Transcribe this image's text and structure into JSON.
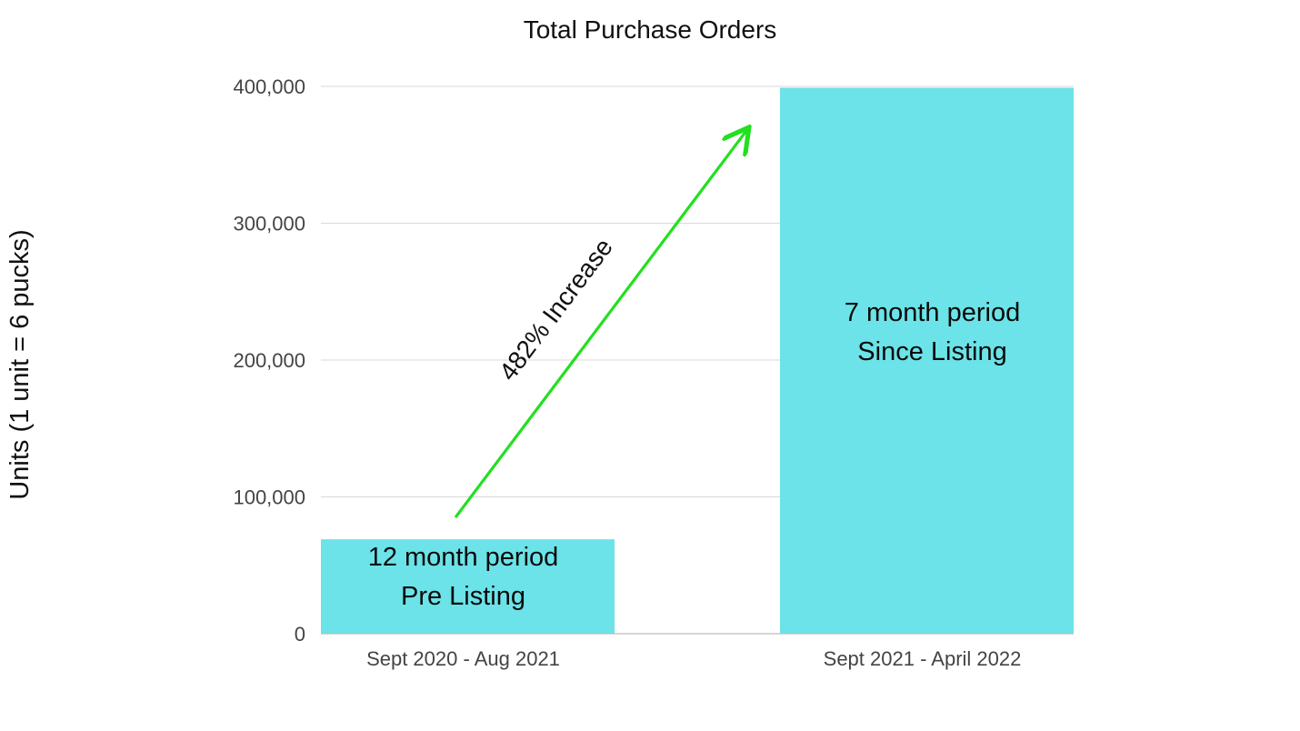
{
  "chart_data": {
    "type": "bar",
    "title": "Total Purchase Orders",
    "xlabel": "",
    "ylabel": "Units (1 unit = 6 pucks)",
    "ylim": [
      0,
      400000
    ],
    "yticks": [
      0,
      100000,
      200000,
      300000,
      400000
    ],
    "ytick_labels": [
      "0",
      "100,000",
      "200,000",
      "300,000",
      "400,000"
    ],
    "grid": true,
    "categories": [
      "Sept 2020 - Aug 2021",
      "Sept 2021 - April 2022"
    ],
    "values": [
      69000,
      399000
    ],
    "bar_labels": [
      [
        "12 month period",
        "Pre Listing"
      ],
      [
        "7 month period",
        "Since Listing"
      ]
    ],
    "annotation": {
      "text": "482% Increase",
      "from": {
        "category_index": 0,
        "value": 85000
      },
      "to": {
        "category_index": 1,
        "value": 387000
      }
    },
    "colors": {
      "bar": "#6be3e8",
      "arrow": "#22e01f",
      "grid": "#d9d9d9"
    }
  }
}
